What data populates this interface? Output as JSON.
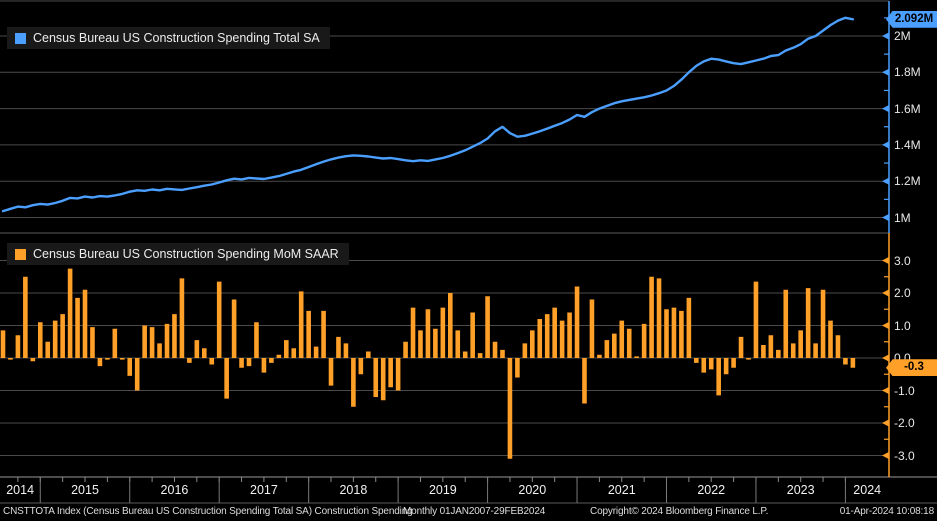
{
  "colors": {
    "line_blue": "#4b9fff",
    "bar_orange": "#ffa028",
    "grid": "#4a4a4a",
    "panel_divider": "#5a5a5a",
    "band_line": "#999999",
    "tick_minor": "#8a8a8a",
    "text": "#e8e8e8",
    "legend_bg": "#191919",
    "badge_text": "#000000"
  },
  "top_panel": {
    "legend": "Census Bureau US Construction Spending Total SA",
    "last_value_label": "2.092M",
    "y_ticks": [
      {
        "label": "2M",
        "value": 2.0
      },
      {
        "label": "1.8M",
        "value": 1.8
      },
      {
        "label": "1.6M",
        "value": 1.6
      },
      {
        "label": "1.4M",
        "value": 1.4
      },
      {
        "label": "1.2M",
        "value": 1.2
      },
      {
        "label": "1M",
        "value": 1.0
      }
    ],
    "y_minor": [
      2.1,
      1.9,
      1.7,
      1.5,
      1.3,
      1.1
    ],
    "grid_values": [
      2.2,
      2.0,
      1.8,
      1.6,
      1.4,
      1.2,
      1.0
    ]
  },
  "bottom_panel": {
    "legend": "Census Bureau US Construction Spending MoM SAAR",
    "last_value_label": "-0.3",
    "y_ticks": [
      {
        "label": "3.0",
        "value": 3
      },
      {
        "label": "2.0",
        "value": 2
      },
      {
        "label": "1.0",
        "value": 1
      },
      {
        "label": "0.0",
        "value": 0
      },
      {
        "label": "-1.0",
        "value": -1
      },
      {
        "label": "-2.0",
        "value": -2
      },
      {
        "label": "-3.0",
        "value": -3
      }
    ],
    "y_minor": [
      2.5,
      1.5,
      0.5,
      -0.5,
      -1.5,
      -2.5
    ],
    "grid_values": [
      3,
      2,
      1,
      0,
      -1,
      -2,
      -3
    ]
  },
  "x_axis": {
    "years": [
      "2014",
      "2015",
      "2016",
      "2017",
      "2018",
      "2019",
      "2020",
      "2021",
      "2022",
      "2023",
      "2024"
    ]
  },
  "footer": {
    "instrument": "CNSTTOTA Index (Census Bureau US Construction Spending Total SA) Construction Spending",
    "period": "Monthly 01JAN2007-29FEB2024",
    "copyright": "Copyright© 2024 Bloomberg Finance L.P.",
    "timestamp": "01-Apr-2024 10:08:18"
  },
  "chart_data": [
    {
      "type": "line",
      "title": "Census Bureau US Construction Spending Total SA",
      "frequency": "monthly",
      "x_start": "2014-08",
      "x_end": "2024-02",
      "unit": "USD, M = million (SAAR total)",
      "ylim": [
        0.95,
        2.2
      ],
      "ytick_labels": [
        "1M",
        "1.2M",
        "1.4M",
        "1.6M",
        "1.8M",
        "2M"
      ],
      "legend_position": "top-left",
      "grid": true,
      "last_value": 2.092,
      "values": [
        1.035,
        1.048,
        1.06,
        1.056,
        1.068,
        1.075,
        1.071,
        1.08,
        1.092,
        1.108,
        1.105,
        1.115,
        1.11,
        1.118,
        1.115,
        1.122,
        1.13,
        1.142,
        1.15,
        1.147,
        1.154,
        1.15,
        1.158,
        1.155,
        1.152,
        1.16,
        1.167,
        1.175,
        1.182,
        1.193,
        1.205,
        1.214,
        1.21,
        1.218,
        1.215,
        1.212,
        1.22,
        1.228,
        1.24,
        1.253,
        1.263,
        1.278,
        1.293,
        1.308,
        1.32,
        1.33,
        1.338,
        1.342,
        1.34,
        1.336,
        1.33,
        1.325,
        1.328,
        1.322,
        1.315,
        1.31,
        1.315,
        1.312,
        1.32,
        1.328,
        1.34,
        1.355,
        1.37,
        1.39,
        1.41,
        1.435,
        1.475,
        1.5,
        1.465,
        1.445,
        1.45,
        1.462,
        1.475,
        1.49,
        1.505,
        1.52,
        1.54,
        1.565,
        1.555,
        1.58,
        1.6,
        1.615,
        1.63,
        1.64,
        1.648,
        1.655,
        1.662,
        1.672,
        1.685,
        1.7,
        1.725,
        1.76,
        1.8,
        1.835,
        1.86,
        1.875,
        1.87,
        1.86,
        1.85,
        1.845,
        1.855,
        1.865,
        1.875,
        1.89,
        1.895,
        1.92,
        1.935,
        1.955,
        1.985,
        2.0,
        2.03,
        2.06,
        2.085,
        2.1,
        2.092
      ]
    },
    {
      "type": "bar",
      "title": "Census Bureau US Construction Spending MoM SAAR",
      "frequency": "monthly",
      "x_start": "2014-08",
      "x_end": "2024-02",
      "unit": "percent",
      "ylim": [
        -3.3,
        3.3
      ],
      "ytick_labels": [
        "-3.0",
        "-2.0",
        "-1.0",
        "0.0",
        "1.0",
        "2.0",
        "3.0"
      ],
      "legend_position": "top-left",
      "grid": true,
      "last_value": -0.3,
      "values": [
        0.85,
        -0.05,
        0.7,
        2.5,
        -0.1,
        1.1,
        0.5,
        1.15,
        1.35,
        2.75,
        1.85,
        2.1,
        0.95,
        -0.25,
        -0.05,
        0.9,
        -0.05,
        -0.55,
        -1.0,
        1.0,
        0.95,
        0.45,
        1.05,
        1.35,
        2.45,
        -0.15,
        0.55,
        0.3,
        -0.2,
        2.35,
        -1.25,
        1.8,
        -0.3,
        -0.25,
        1.1,
        -0.45,
        -0.15,
        0.1,
        0.55,
        0.3,
        2.05,
        1.45,
        0.35,
        1.45,
        -0.85,
        0.65,
        0.45,
        -1.5,
        -0.5,
        0.2,
        -1.2,
        -1.3,
        -0.9,
        -1.0,
        0.5,
        1.55,
        0.85,
        1.5,
        0.9,
        1.55,
        2.0,
        0.85,
        0.2,
        1.4,
        0.15,
        1.9,
        0.5,
        0.25,
        -3.1,
        -0.6,
        0.45,
        0.85,
        1.2,
        1.35,
        1.55,
        1.15,
        1.4,
        2.2,
        -1.4,
        1.8,
        0.1,
        0.55,
        0.75,
        1.15,
        0.9,
        0.05,
        1.05,
        2.5,
        2.45,
        1.5,
        1.55,
        1.45,
        1.85,
        -0.15,
        -0.45,
        -0.35,
        -1.15,
        -0.5,
        -0.3,
        0.65,
        -0.05,
        2.35,
        0.4,
        0.7,
        0.25,
        2.1,
        0.45,
        0.85,
        2.15,
        0.45,
        2.1,
        1.15,
        0.7,
        -0.2,
        -0.3
      ]
    }
  ]
}
